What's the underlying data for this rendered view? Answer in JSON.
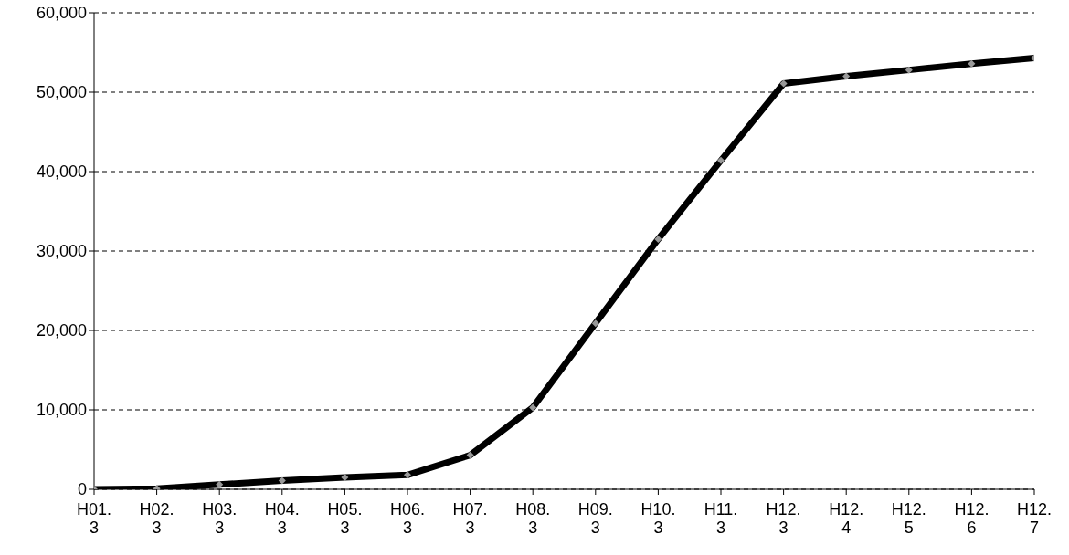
{
  "chart_data": {
    "type": "line",
    "categories": [
      "H01.\n3",
      "H02.\n3",
      "H03.\n3",
      "H04.\n3",
      "H05.\n3",
      "H06.\n3",
      "H07.\n3",
      "H08.\n3",
      "H09.\n3",
      "H10.\n3",
      "H11.\n3",
      "H12.\n3",
      "H12.\n4",
      "H12.\n5",
      "H12.\n6",
      "H12.\n7"
    ],
    "series": [
      {
        "color": "#000000",
        "values": [
          0,
          100,
          600,
          1100,
          1500,
          1800,
          4300,
          10300,
          20900,
          31500,
          41400,
          51100,
          52000,
          52800,
          53600,
          54300
        ]
      }
    ],
    "ylim": [
      0,
      60000
    ],
    "yticks": [
      {
        "value": 0,
        "label": "0"
      },
      {
        "value": 10000,
        "label": "10,000"
      },
      {
        "value": 20000,
        "label": "20,000"
      },
      {
        "value": 30000,
        "label": "30,000"
      },
      {
        "value": 40000,
        "label": "40,000"
      },
      {
        "value": 50000,
        "label": "50,000"
      },
      {
        "value": 60000,
        "label": "60,000"
      }
    ],
    "grid": "y",
    "marker": "diamond",
    "line_style": "solid",
    "legend": false
  }
}
